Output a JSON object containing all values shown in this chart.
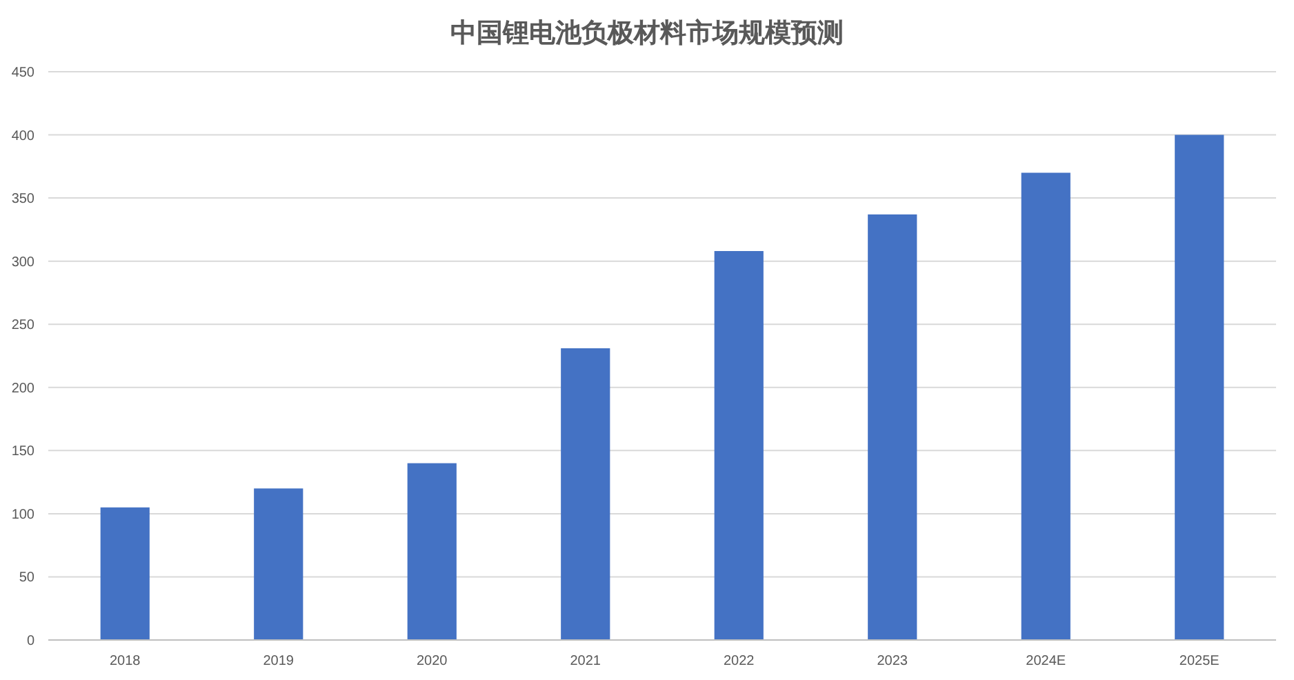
{
  "chart_data": {
    "type": "bar",
    "title": "中国锂电池负极材料市场规模预测",
    "categories": [
      "2018",
      "2019",
      "2020",
      "2021",
      "2022",
      "2023",
      "2024E",
      "2025E"
    ],
    "values": [
      105,
      120,
      140,
      231,
      308,
      337,
      370,
      400
    ],
    "color": "#4472c4",
    "ylim": [
      0,
      450
    ],
    "yticks": [
      0,
      50,
      100,
      150,
      200,
      250,
      300,
      350,
      400,
      450
    ],
    "grid": "y"
  }
}
